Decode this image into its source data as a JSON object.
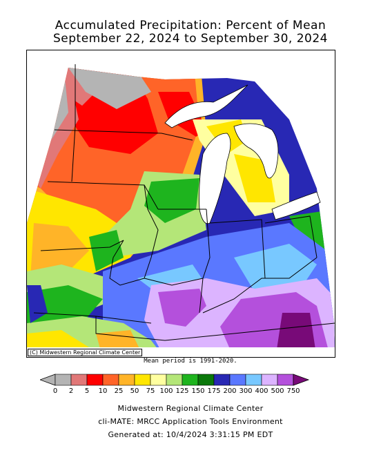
{
  "title": {
    "line1": "Accumulated Precipitation: Percent of Mean",
    "line2": "September 22, 2024 to September 30, 2024"
  },
  "map": {
    "copyright": "(C) Midwestern Regional Climate Center",
    "mean_note": "Mean period is 1991-2020."
  },
  "legend": {
    "ticks": [
      "0",
      "2",
      "5",
      "10",
      "25",
      "50",
      "75",
      "100",
      "125",
      "150",
      "175",
      "200",
      "300",
      "400",
      "500",
      "750"
    ],
    "colors": [
      "#b4b4b4",
      "#e17878",
      "#ff0000",
      "#ff6428",
      "#ffb428",
      "#ffe600",
      "#ffffa0",
      "#b4e678",
      "#1eb41e",
      "#0a780a",
      "#2828b4",
      "#5a78ff",
      "#78c8ff",
      "#dcb4ff",
      "#b450dc",
      "#780a78"
    ],
    "under_color": "#b4b4b4",
    "over_color": "#780a78"
  },
  "footer": {
    "line1": "Midwestern Regional Climate Center",
    "line2": "cli-MATE: MRCC Application Tools Environment",
    "line3": "Generated at: 10/4/2024 3:31:15 PM EDT"
  }
}
